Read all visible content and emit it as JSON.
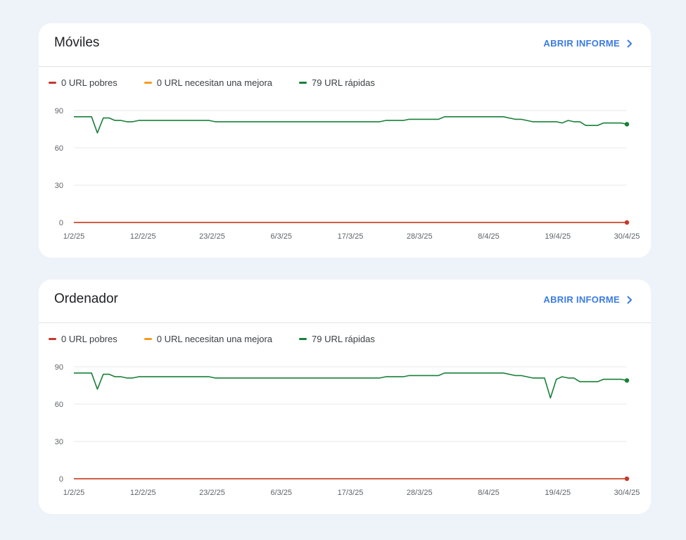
{
  "cards": [
    {
      "title": "Móviles",
      "open_report_label": "ABRIR INFORME",
      "legend": [
        {
          "label": "0 URL pobres",
          "color": "#c5392a"
        },
        {
          "label": "0 URL necesitan una mejora",
          "color": "#f29d1c"
        },
        {
          "label": "79 URL rápidas",
          "color": "#188038"
        }
      ]
    },
    {
      "title": "Ordenador",
      "open_report_label": "ABRIR INFORME",
      "legend": [
        {
          "label": "0 URL pobres",
          "color": "#c5392a"
        },
        {
          "label": "0 URL necesitan una mejora",
          "color": "#f29d1c"
        },
        {
          "label": "79 URL rápidas",
          "color": "#188038"
        }
      ]
    }
  ],
  "chart_data": [
    {
      "type": "line",
      "title": "Móviles",
      "x_start": "1/2/25",
      "x_end": "30/4/25",
      "x_tick_labels": [
        "1/2/25",
        "12/2/25",
        "23/2/25",
        "6/3/25",
        "17/3/25",
        "28/3/25",
        "8/4/25",
        "19/4/25",
        "30/4/25"
      ],
      "y_tick_labels": [
        "90",
        "60",
        "30",
        "0"
      ],
      "y_ticks": [
        90,
        60,
        30,
        0
      ],
      "ylim": [
        0,
        90
      ],
      "grid": true,
      "legend_position": "top-left",
      "series": [
        {
          "name": "79 URL rápidas",
          "color": "#188038",
          "points": [
            [
              0,
              85
            ],
            [
              3,
              85
            ],
            [
              4,
              72
            ],
            [
              5,
              84
            ],
            [
              6,
              84
            ],
            [
              7,
              82
            ],
            [
              8,
              82
            ],
            [
              9,
              81
            ],
            [
              10,
              81
            ],
            [
              11,
              82
            ],
            [
              23,
              82
            ],
            [
              24,
              81
            ],
            [
              52,
              81
            ],
            [
              53,
              82
            ],
            [
              56,
              82
            ],
            [
              57,
              83
            ],
            [
              62,
              83
            ],
            [
              63,
              85
            ],
            [
              73,
              85
            ],
            [
              75,
              83
            ],
            [
              76,
              83
            ],
            [
              78,
              81
            ],
            [
              82,
              81
            ],
            [
              83,
              80
            ],
            [
              84,
              82
            ],
            [
              85,
              81
            ],
            [
              86,
              81
            ],
            [
              87,
              78
            ],
            [
              88,
              78
            ],
            [
              89,
              78
            ],
            [
              90,
              80
            ],
            [
              93,
              80
            ],
            [
              94,
              79
            ]
          ]
        },
        {
          "name": "0 URL necesitan una mejora",
          "color": "#f29d1c",
          "points": [
            [
              0,
              0
            ],
            [
              94,
              0
            ]
          ]
        },
        {
          "name": "0 URL pobres",
          "color": "#c5392a",
          "points": [
            [
              0,
              0
            ],
            [
              94,
              0
            ]
          ]
        }
      ]
    },
    {
      "type": "line",
      "title": "Ordenador",
      "x_start": "1/2/25",
      "x_end": "30/4/25",
      "x_tick_labels": [
        "1/2/25",
        "12/2/25",
        "23/2/25",
        "6/3/25",
        "17/3/25",
        "28/3/25",
        "8/4/25",
        "19/4/25",
        "30/4/25"
      ],
      "y_tick_labels": [
        "90",
        "60",
        "30",
        "0"
      ],
      "y_ticks": [
        90,
        60,
        30,
        0
      ],
      "ylim": [
        0,
        90
      ],
      "grid": true,
      "legend_position": "top-left",
      "series": [
        {
          "name": "79 URL rápidas",
          "color": "#188038",
          "points": [
            [
              0,
              85
            ],
            [
              3,
              85
            ],
            [
              4,
              72
            ],
            [
              5,
              84
            ],
            [
              6,
              84
            ],
            [
              7,
              82
            ],
            [
              8,
              82
            ],
            [
              9,
              81
            ],
            [
              10,
              81
            ],
            [
              11,
              82
            ],
            [
              23,
              82
            ],
            [
              24,
              81
            ],
            [
              52,
              81
            ],
            [
              53,
              82
            ],
            [
              56,
              82
            ],
            [
              57,
              83
            ],
            [
              62,
              83
            ],
            [
              63,
              85
            ],
            [
              73,
              85
            ],
            [
              75,
              83
            ],
            [
              76,
              83
            ],
            [
              78,
              81
            ],
            [
              80,
              81
            ],
            [
              81,
              65
            ],
            [
              82,
              80
            ],
            [
              83,
              82
            ],
            [
              84,
              81
            ],
            [
              85,
              81
            ],
            [
              86,
              78
            ],
            [
              87,
              78
            ],
            [
              89,
              78
            ],
            [
              90,
              80
            ],
            [
              93,
              80
            ],
            [
              94,
              79
            ]
          ]
        },
        {
          "name": "0 URL necesitan una mejora",
          "color": "#f29d1c",
          "points": [
            [
              0,
              0
            ],
            [
              94,
              0
            ]
          ]
        },
        {
          "name": "0 URL pobres",
          "color": "#c5392a",
          "points": [
            [
              0,
              0
            ],
            [
              94,
              0
            ]
          ]
        }
      ]
    }
  ]
}
